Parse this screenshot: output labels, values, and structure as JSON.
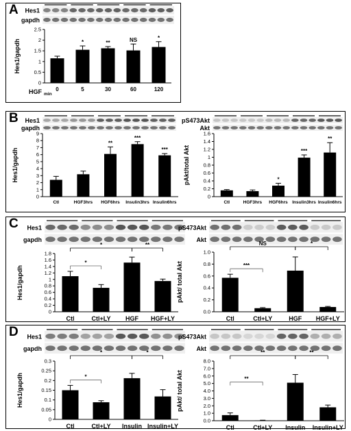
{
  "panels": [
    {
      "letter": "A"
    },
    {
      "letter": "B"
    },
    {
      "letter": "C"
    },
    {
      "letter": "D"
    }
  ],
  "chart_data": [
    {
      "panel": "A",
      "type": "bar",
      "blot_labels": [
        "Hes1",
        "gapdh"
      ],
      "xlabel": "HGF",
      "xlabel_sub": "min",
      "ylabel": "Hes1/gapdh",
      "categories": [
        "0",
        "5",
        "30",
        "60",
        "120"
      ],
      "values": [
        1.15,
        1.55,
        1.62,
        1.52,
        1.68
      ],
      "errors": [
        0.1,
        0.18,
        0.08,
        0.3,
        0.25
      ],
      "significance": [
        "",
        "*",
        "**",
        "NS",
        "*"
      ],
      "ylim": [
        0,
        2.5
      ],
      "yticks": [
        "0",
        "0.5",
        "1",
        "1.5",
        "2",
        "2.5"
      ]
    },
    {
      "panel": "B-left",
      "type": "bar",
      "blot_labels": [
        "Hes1",
        "gapdh"
      ],
      "ylabel": "Hes1/gapdh",
      "categories": [
        "Ctl",
        "HGF3hrs",
        "HGF6hrs",
        "Insulin3hrs",
        "Insulin6hrs"
      ],
      "values": [
        2.4,
        3.2,
        6.1,
        7.5,
        5.9
      ],
      "errors": [
        0.5,
        0.45,
        1.0,
        0.35,
        0.25
      ],
      "significance": [
        "",
        "",
        "**",
        "***",
        "***"
      ],
      "ylim": [
        0,
        9
      ],
      "yticks": [
        "0",
        "1",
        "2",
        "3",
        "4",
        "5",
        "6",
        "7",
        "8",
        "9"
      ]
    },
    {
      "panel": "B-right",
      "type": "bar",
      "blot_labels": [
        "pS473Akt",
        "Akt"
      ],
      "ylabel": "pAkt/total Akt",
      "categories": [
        "Ctl",
        "HGF3hrs",
        "HGF6hrs",
        "Insulin3hrs",
        "Insulin6hrs"
      ],
      "values": [
        0.16,
        0.14,
        0.28,
        0.99,
        1.12
      ],
      "errors": [
        0.02,
        0.03,
        0.06,
        0.07,
        0.25
      ],
      "significance": [
        "",
        "",
        "*",
        "***",
        "**"
      ],
      "ylim": [
        0,
        1.6
      ],
      "yticks": [
        "0",
        "0.2",
        "0.4",
        "0.6",
        "0.8",
        "1",
        "1.2",
        "1.4",
        "1.6"
      ]
    },
    {
      "panel": "C-left",
      "type": "bar",
      "blot_labels": [
        "Hes1",
        "gapdh"
      ],
      "ylabel": "Hes1/gapdh",
      "categories": [
        "Ctl",
        "Ctl+LY",
        "HGF",
        "HGF+LY"
      ],
      "values": [
        1.1,
        0.74,
        1.52,
        0.95
      ],
      "errors": [
        0.15,
        0.1,
        0.17,
        0.06
      ],
      "significance": [
        "",
        "",
        "",
        ""
      ],
      "brackets": [
        {
          "from": 0,
          "to": 1,
          "label": "*",
          "level": 1
        },
        {
          "from": 0,
          "to": 2,
          "label": "*",
          "level": 2
        },
        {
          "from": 2,
          "to": 3,
          "label": "**",
          "level": 2
        }
      ],
      "ylim": [
        0,
        1.8
      ],
      "yticks": [
        "0",
        "0.2",
        "0.4",
        "0.6",
        "0.8",
        "1",
        "1.2",
        "1.4",
        "1.6",
        "1.8"
      ]
    },
    {
      "panel": "C-right",
      "type": "bar",
      "blot_labels": [
        "pS473Akt",
        "Akt"
      ],
      "ylabel": "pAkt/ total Akt",
      "categories": [
        "Ctl",
        "Ctl+LY",
        "HGF",
        "HGF+LY"
      ],
      "values": [
        0.57,
        0.06,
        0.69,
        0.08
      ],
      "errors": [
        0.06,
        0.01,
        0.23,
        0.01
      ],
      "significance": [
        "",
        "",
        "",
        ""
      ],
      "brackets": [
        {
          "from": 0,
          "to": 1,
          "label": "***",
          "level": 1
        },
        {
          "from": 0,
          "to": 2,
          "label": "NS",
          "level": 2
        },
        {
          "from": 2,
          "to": 3,
          "label": "*",
          "level": 2
        }
      ],
      "ylim": [
        0,
        1.0
      ],
      "yticks": [
        "0.0",
        "0.2",
        "0.4",
        "0.6",
        "0.8",
        "1.0"
      ]
    },
    {
      "panel": "D-left",
      "type": "bar",
      "blot_labels": [
        "Hes1",
        "gapdh"
      ],
      "ylabel": "Hes1/gapdh",
      "categories": [
        "Ctl",
        "Ctl+LY",
        "Insulin",
        "Insulin+LY"
      ],
      "values": [
        0.15,
        0.088,
        0.212,
        0.118
      ],
      "errors": [
        0.025,
        0.008,
        0.025,
        0.035
      ],
      "significance": [
        "",
        "",
        "",
        ""
      ],
      "brackets": [
        {
          "from": 0,
          "to": 1,
          "label": "*",
          "level": 1
        },
        {
          "from": 0,
          "to": 2,
          "label": "*",
          "level": 2
        },
        {
          "from": 2,
          "to": 3,
          "label": "*",
          "level": 2
        }
      ],
      "ylim": [
        0,
        0.3
      ],
      "yticks": [
        "0",
        "0.05",
        "0.1",
        "0.15",
        "0.2",
        "0.25",
        "0.3"
      ]
    },
    {
      "panel": "D-right",
      "type": "bar",
      "blot_labels": [
        "pS473Akt",
        "Akt"
      ],
      "ylabel": "pAkt/ total Akt",
      "categories": [
        "Ctl",
        "Ctl+LY",
        "Insulin",
        "Insulin+LY"
      ],
      "values": [
        0.75,
        0.05,
        5.1,
        1.8
      ],
      "errors": [
        0.3,
        0.02,
        1.1,
        0.3
      ],
      "significance": [
        "",
        "",
        "",
        ""
      ],
      "brackets": [
        {
          "from": 0,
          "to": 1,
          "label": "**",
          "level": 1
        },
        {
          "from": 0,
          "to": 2,
          "label": "**",
          "level": 2
        },
        {
          "from": 2,
          "to": 3,
          "label": "**",
          "level": 2
        }
      ],
      "ylim": [
        0,
        8.0
      ],
      "yticks": [
        "0.0",
        "1.0",
        "2.0",
        "3.0",
        "4.0",
        "5.0",
        "6.0",
        "7.0",
        "8.0"
      ]
    }
  ]
}
